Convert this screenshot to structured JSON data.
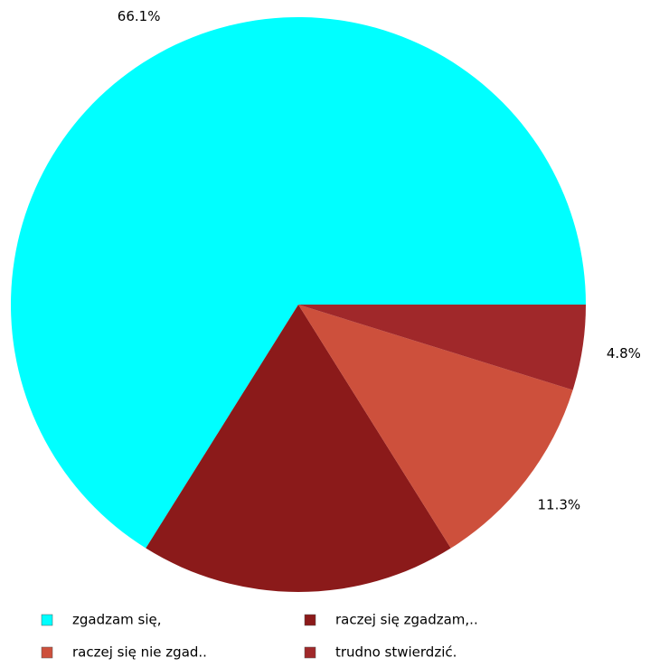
{
  "chart_data": {
    "type": "pie",
    "categories": [
      "zgadzam się,",
      "raczej się zgadzam,..",
      "raczej się nie zgad..",
      "trudno stwierdzić."
    ],
    "values": [
      66.1,
      17.8,
      11.3,
      4.8
    ],
    "value_labels": [
      "66.1%",
      null,
      "11.3%",
      "4.8%"
    ],
    "colors": [
      "#00ffff",
      "#8b1a1a",
      "#cd503c",
      "#a0282a"
    ],
    "legend": "bottom"
  }
}
